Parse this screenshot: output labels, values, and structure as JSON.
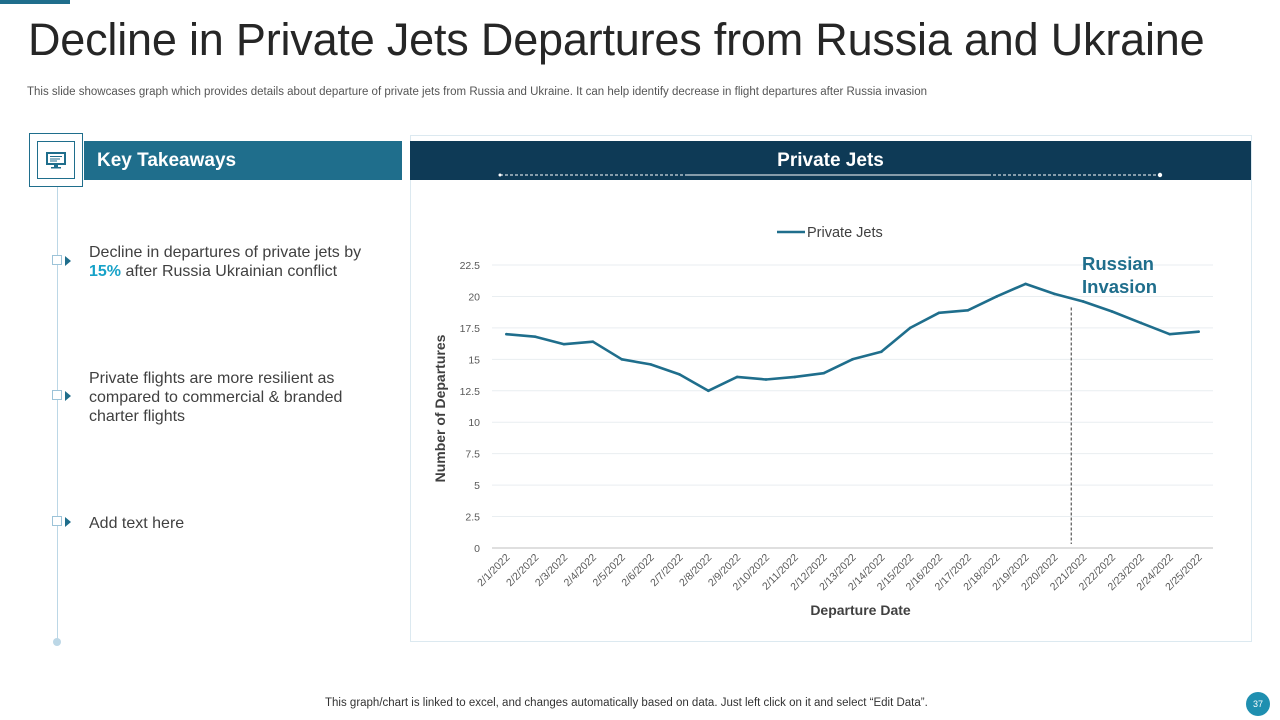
{
  "slide": {
    "title": "Decline in Private Jets Departures from Russia and Ukraine",
    "subtitle": "This slide showcases graph which provides details about departure of private jets from Russia and Ukraine. It can help identify decrease in flight departures after Russia invasion",
    "footer_note": "This graph/chart is linked to excel,  and changes automatically based on data. Just left click on it and select “Edit Data”.",
    "page_number": "37"
  },
  "takeaways": {
    "title": "Key Takeaways",
    "icon": "monitor-icon",
    "items": [
      {
        "pre": "Decline in departures of private jets by ",
        "highlight": "15%",
        "post": " after Russia Ukrainian conflict"
      },
      {
        "text": "Private flights are more resilient as compared to commercial & branded charter flights"
      },
      {
        "text": "Add text here"
      }
    ]
  },
  "chart_panel": {
    "header": "Private Jets"
  },
  "colors": {
    "accent": "#1f6e8c",
    "header_dark": "#0e3a56",
    "line": "#1f6e8c",
    "highlight": "#17a2c8",
    "annotation": "#1f6e8c"
  },
  "chart_data": {
    "type": "line",
    "title": "",
    "xlabel": "Departure Date",
    "ylabel": "Number of Departures",
    "ylim": [
      0,
      22.5
    ],
    "yticks": [
      0,
      2.5,
      5,
      7.5,
      10,
      12.5,
      15,
      17.5,
      20,
      22.5
    ],
    "grid": true,
    "legend": "top-center",
    "categories": [
      "2/1/2022",
      "2/2/2022",
      "2/3/2022",
      "2/4/2022",
      "2/5/2022",
      "2/6/2022",
      "2/7/2022",
      "2/8/2022",
      "2/9/2022",
      "2/10/2022",
      "2/11/2022",
      "2/12/2022",
      "2/13/2022",
      "2/14/2022",
      "2/15/2022",
      "2/16/2022",
      "2/17/2022",
      "2/18/2022",
      "2/19/2022",
      "2/20/2022",
      "2/21/2022",
      "2/22/2022",
      "2/23/2022",
      "2/24/2022",
      "2/25/2022"
    ],
    "series": [
      {
        "name": "Private Jets",
        "values": [
          17,
          16.8,
          16.2,
          16.4,
          15,
          14.6,
          13.8,
          12.5,
          13.6,
          13.4,
          13.6,
          13.9,
          15,
          15.6,
          17.5,
          18.7,
          18.9,
          20,
          21,
          20.2,
          19.6,
          18.8,
          17.9,
          17,
          17.2
        ]
      }
    ],
    "annotation": {
      "text": "Russian Invasion",
      "x": "2/21/2022"
    }
  }
}
